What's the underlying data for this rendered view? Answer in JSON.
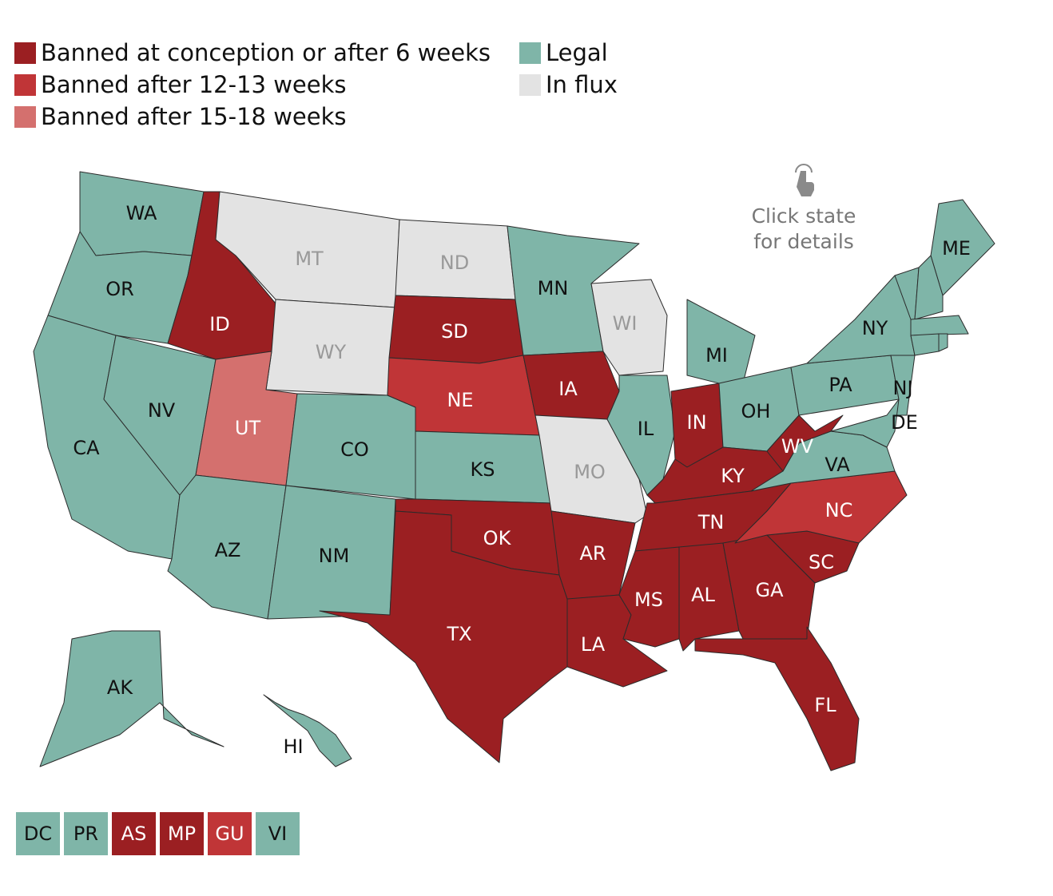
{
  "legend": [
    {
      "label": "Banned at conception or after 6 weeks",
      "color": "#9b1f22"
    },
    {
      "label": "Banned after 12-13 weeks",
      "color": "#c03537"
    },
    {
      "label": "Banned after 15-18 weeks",
      "color": "#d4706e"
    },
    {
      "label": "Legal",
      "color": "#7fb5a8"
    },
    {
      "label": "In flux",
      "color": "#e3e3e3"
    }
  ],
  "hint": [
    "Click state",
    "for details"
  ],
  "states": [
    {
      "abbr": "WA",
      "color": "#7fb5a8"
    },
    {
      "abbr": "OR",
      "color": "#7fb5a8"
    },
    {
      "abbr": "CA",
      "color": "#7fb5a8"
    },
    {
      "abbr": "NV",
      "color": "#7fb5a8"
    },
    {
      "abbr": "ID",
      "color": "#9b1f22"
    },
    {
      "abbr": "MT",
      "color": "#e3e3e3"
    },
    {
      "abbr": "WY",
      "color": "#e3e3e3"
    },
    {
      "abbr": "UT",
      "color": "#d4706e"
    },
    {
      "abbr": "CO",
      "color": "#7fb5a8"
    },
    {
      "abbr": "AZ",
      "color": "#7fb5a8"
    },
    {
      "abbr": "NM",
      "color": "#7fb5a8"
    },
    {
      "abbr": "ND",
      "color": "#e3e3e3"
    },
    {
      "abbr": "SD",
      "color": "#9b1f22"
    },
    {
      "abbr": "NE",
      "color": "#c03537"
    },
    {
      "abbr": "KS",
      "color": "#7fb5a8"
    },
    {
      "abbr": "OK",
      "color": "#9b1f22"
    },
    {
      "abbr": "TX",
      "color": "#9b1f22"
    },
    {
      "abbr": "MN",
      "color": "#7fb5a8"
    },
    {
      "abbr": "IA",
      "color": "#9b1f22"
    },
    {
      "abbr": "MO",
      "color": "#e3e3e3"
    },
    {
      "abbr": "AR",
      "color": "#9b1f22"
    },
    {
      "abbr": "LA",
      "color": "#9b1f22"
    },
    {
      "abbr": "WI",
      "color": "#e3e3e3"
    },
    {
      "abbr": "IL",
      "color": "#7fb5a8"
    },
    {
      "abbr": "MI",
      "color": "#7fb5a8"
    },
    {
      "abbr": "IN",
      "color": "#9b1f22"
    },
    {
      "abbr": "OH",
      "color": "#7fb5a8"
    },
    {
      "abbr": "KY",
      "color": "#9b1f22"
    },
    {
      "abbr": "TN",
      "color": "#9b1f22"
    },
    {
      "abbr": "MS",
      "color": "#9b1f22"
    },
    {
      "abbr": "AL",
      "color": "#9b1f22"
    },
    {
      "abbr": "GA",
      "color": "#9b1f22"
    },
    {
      "abbr": "FL",
      "color": "#9b1f22"
    },
    {
      "abbr": "SC",
      "color": "#9b1f22"
    },
    {
      "abbr": "NC",
      "color": "#c03537"
    },
    {
      "abbr": "VA",
      "color": "#7fb5a8"
    },
    {
      "abbr": "WV",
      "color": "#9b1f22"
    },
    {
      "abbr": "PA",
      "color": "#7fb5a8"
    },
    {
      "abbr": "NY",
      "color": "#7fb5a8"
    },
    {
      "abbr": "NJ",
      "color": "#7fb5a8"
    },
    {
      "abbr": "DE",
      "color": "#7fb5a8"
    },
    {
      "abbr": "ME",
      "color": "#7fb5a8"
    },
    {
      "abbr": "AK",
      "color": "#7fb5a8"
    },
    {
      "abbr": "HI",
      "color": "#7fb5a8"
    }
  ],
  "territories": [
    {
      "abbr": "DC",
      "color": "#7fb5a8"
    },
    {
      "abbr": "PR",
      "color": "#7fb5a8"
    },
    {
      "abbr": "AS",
      "color": "#9b1f22"
    },
    {
      "abbr": "MP",
      "color": "#9b1f22"
    },
    {
      "abbr": "GU",
      "color": "#c03537"
    },
    {
      "abbr": "VI",
      "color": "#7fb5a8"
    }
  ]
}
